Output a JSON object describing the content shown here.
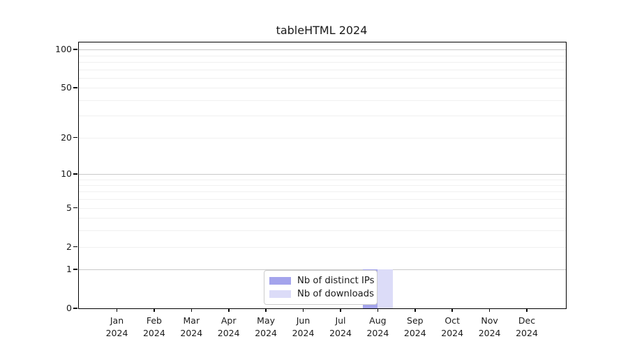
{
  "title": "tableHTML 2024",
  "chart_data": {
    "type": "bar",
    "title": "tableHTML 2024",
    "x_categories": [
      "Jan",
      "Feb",
      "Mar",
      "Apr",
      "May",
      "Jun",
      "Jul",
      "Aug",
      "Sep",
      "Oct",
      "Nov",
      "Dec"
    ],
    "x_year": "2024",
    "series": [
      {
        "name": "Nb of distinct IPs",
        "color": "#a4a4ec",
        "values": [
          0,
          0,
          0,
          0,
          0,
          0,
          0,
          1,
          0,
          0,
          0,
          0
        ]
      },
      {
        "name": "Nb of downloads",
        "color": "#dcdcf8",
        "values": [
          0,
          0,
          0,
          0,
          0,
          0,
          0,
          1,
          0,
          0,
          0,
          0
        ]
      }
    ],
    "y_scale": "log1p",
    "y_tick_labels": [
      "0",
      "1",
      "2",
      "5",
      "10",
      "20",
      "50",
      "100"
    ],
    "y_tick_values": [
      0,
      1,
      2,
      5,
      10,
      20,
      50,
      100
    ],
    "y_major_grid": [
      1,
      10,
      100
    ],
    "y_minor_grid": [
      2,
      3,
      4,
      5,
      6,
      7,
      8,
      9,
      20,
      30,
      40,
      50,
      60,
      70,
      80,
      90
    ],
    "y_max": 113.5,
    "ylim": [
      0,
      113.5
    ],
    "grid": true,
    "legend_position": "bottom-center"
  },
  "legend": {
    "items": [
      {
        "label": "Nb of distinct IPs",
        "color": "#a4a4ec"
      },
      {
        "label": "Nb of downloads",
        "color": "#dcdcf8"
      }
    ]
  },
  "colors": {
    "background": "#ffffff",
    "plot_border": "#000000",
    "major_grid": "#c9c9c9",
    "minor_grid": "#f0f0f0",
    "bar_distinct_ips": "#a4a4ec",
    "bar_downloads": "#dcdcf8",
    "text": "#1a1a1a"
  }
}
